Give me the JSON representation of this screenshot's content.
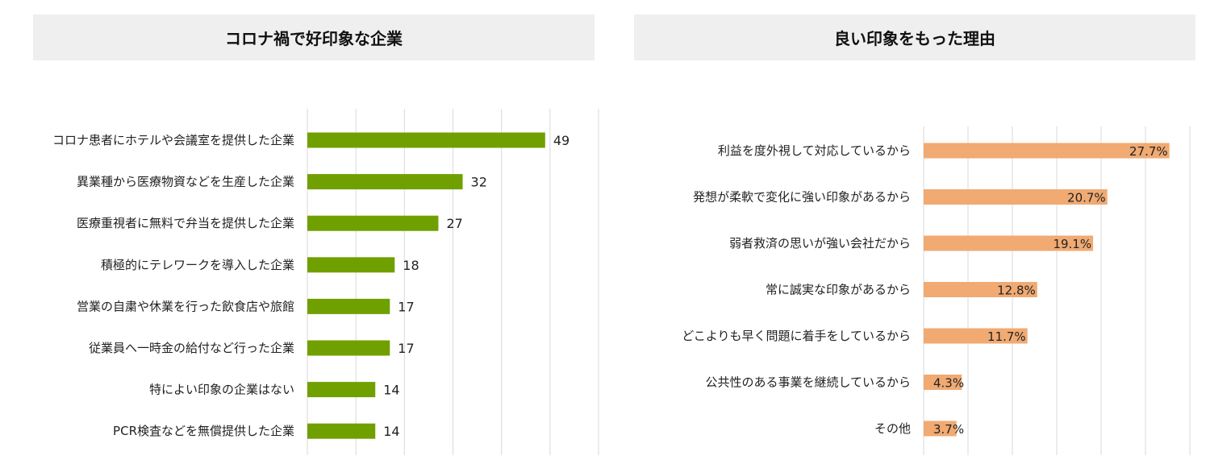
{
  "charts": {
    "left": {
      "title": "コロナ禍で好印象な企業",
      "chart_data": {
        "type": "bar",
        "orientation": "horizontal",
        "categories": [
          "コロナ患者にホテルや会議室を提供した企業",
          "異業種から医療物資などを生産した企業",
          "医療重視者に無料で弁当を提供した企業",
          "積極的にテレワークを導入した企業",
          "営業の自粛や休業を行った飲食店や旅館",
          "従業員へ一時金の給付など行った企業",
          "特によい印象の企業はない",
          "PCR検査などを無償提供した企業"
        ],
        "values": [
          49,
          32,
          27,
          18,
          17,
          17,
          14,
          14
        ],
        "value_labels": [
          "49",
          "32",
          "27",
          "18",
          "17",
          "17",
          "14",
          "14"
        ],
        "xlim": [
          0,
          60
        ],
        "grid": true,
        "bar_color": "#70a000"
      }
    },
    "right": {
      "title": "良い印象をもった理由",
      "chart_data": {
        "type": "bar",
        "orientation": "horizontal",
        "categories": [
          "利益を度外視して対応しているから",
          "発想が柔軟で変化に強い印象があるから",
          "弱者救済の思いが強い会社だから",
          "常に誠実な印象があるから",
          "どこよりも早く問題に着手をしているから",
          "公共性のある事業を継続しているから",
          "その他"
        ],
        "values": [
          27.7,
          20.7,
          19.1,
          12.8,
          11.7,
          4.3,
          3.7
        ],
        "value_labels": [
          "27.7%",
          "20.7%",
          "19.1%",
          "12.8%",
          "11.7%",
          "4.3%",
          "3.7%"
        ],
        "xlim": [
          0,
          30
        ],
        "grid": true,
        "bar_color": "#f0aa72"
      }
    }
  }
}
